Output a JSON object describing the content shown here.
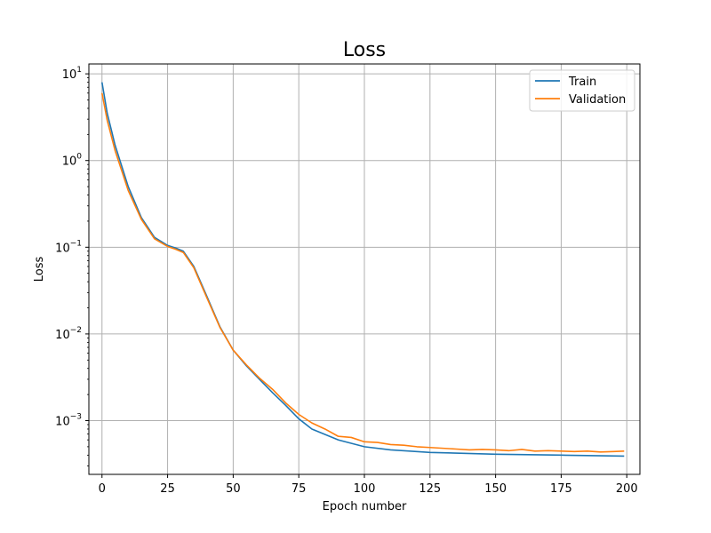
{
  "chart_data": {
    "type": "line",
    "title": "Loss",
    "xlabel": "Epoch number",
    "ylabel": "Loss",
    "xlim": [
      -5,
      205
    ],
    "ylim": [
      0.00024,
      13
    ],
    "yscale": "log",
    "grid": true,
    "legend_position": "top-right",
    "x_ticks": [
      0,
      25,
      50,
      75,
      100,
      125,
      150,
      175,
      200
    ],
    "y_ticks": [
      {
        "value": 0.001,
        "base": "10",
        "exp": "−3"
      },
      {
        "value": 0.01,
        "base": "10",
        "exp": "−2"
      },
      {
        "value": 0.1,
        "base": "10",
        "exp": "−1"
      },
      {
        "value": 1,
        "base": "10",
        "exp": "0"
      },
      {
        "value": 10,
        "base": "10",
        "exp": "1"
      }
    ],
    "series": [
      {
        "name": "Train",
        "color": "#1f77b4",
        "x": [
          0,
          2,
          5,
          10,
          15,
          20,
          25,
          28,
          31,
          35,
          40,
          45,
          50,
          55,
          60,
          65,
          70,
          75,
          80,
          90,
          100,
          110,
          125,
          150,
          175,
          199
        ],
        "y": [
          8.0,
          3.5,
          1.5,
          0.5,
          0.22,
          0.13,
          0.105,
          0.098,
          0.09,
          0.06,
          0.027,
          0.012,
          0.0065,
          0.0043,
          0.003,
          0.0021,
          0.0015,
          0.00105,
          0.0008,
          0.0006,
          0.0005,
          0.00046,
          0.00043,
          0.00041,
          0.0004,
          0.00039
        ]
      },
      {
        "name": "Validation",
        "color": "#ff7f0e",
        "x": [
          0,
          2,
          5,
          10,
          15,
          20,
          25,
          28,
          31,
          35,
          40,
          45,
          50,
          55,
          60,
          65,
          70,
          75,
          80,
          85,
          90,
          95,
          100,
          105,
          110,
          115,
          120,
          125,
          130,
          135,
          140,
          145,
          150,
          155,
          160,
          165,
          170,
          175,
          180,
          185,
          190,
          195,
          199
        ],
        "y": [
          6.0,
          2.9,
          1.3,
          0.45,
          0.21,
          0.125,
          0.102,
          0.095,
          0.087,
          0.058,
          0.026,
          0.0118,
          0.0065,
          0.0044,
          0.0031,
          0.0023,
          0.0016,
          0.00118,
          0.00094,
          0.0008,
          0.00066,
          0.00064,
          0.00057,
          0.00056,
          0.00053,
          0.00052,
          0.0005,
          0.00049,
          0.00048,
          0.00047,
          0.00046,
          0.000465,
          0.00046,
          0.00045,
          0.000465,
          0.000445,
          0.00045,
          0.000445,
          0.00044,
          0.000445,
          0.000435,
          0.00044,
          0.000445
        ]
      }
    ]
  }
}
